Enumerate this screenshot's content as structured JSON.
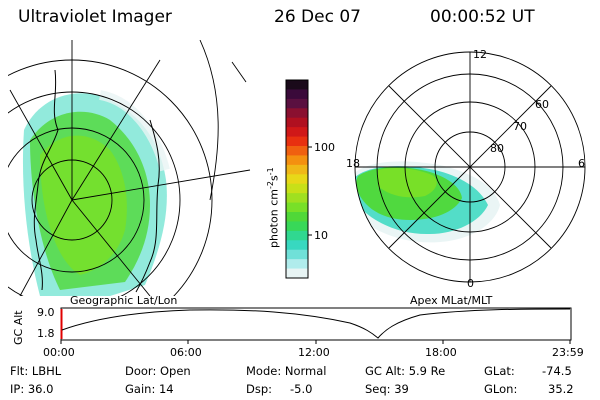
{
  "header": {
    "instrument": "Ultraviolet Imager",
    "date": "26 Dec 07",
    "time": "00:00:52 UT"
  },
  "colorbar": {
    "unit_label": "photon cm",
    "unit_exp1": "-2",
    "unit_mid": "s",
    "unit_exp2": "-1",
    "ticks": [
      "100",
      "10"
    ],
    "colors": [
      "#1a0a1a",
      "#3a0a3a",
      "#5a1040",
      "#8a1030",
      "#b01020",
      "#d01818",
      "#e83010",
      "#f06010",
      "#f49010",
      "#f0b818",
      "#e8d818",
      "#c8e018",
      "#a0e020",
      "#78e028",
      "#50d838",
      "#38d858",
      "#30d890",
      "#38d8c0",
      "#70e0d8",
      "#b0ecec",
      "#e8f4f4"
    ]
  },
  "left_map": {
    "label": "Geographic Lat/Lon"
  },
  "right_map": {
    "label": "Apex MLat/MLT",
    "mlt_labels": [
      "12",
      "18",
      "6",
      "0"
    ],
    "mlat_labels": [
      "60",
      "70",
      "80"
    ]
  },
  "altitude_plot": {
    "y_axis_label": "GC Alt",
    "y_max": "9.0",
    "y_min": "1.8",
    "x_ticks": [
      "00:00",
      "06:00",
      "12:00",
      "18:00",
      "23:59"
    ]
  },
  "info": {
    "filter": "Flt: LBHL",
    "ip": "IP: 36.0",
    "door": "Door: Open",
    "gain": "Gain: 14",
    "mode": "Mode: Normal",
    "dsp_label": "Dsp:",
    "dsp_value": "-5.0",
    "gc_alt": "GC Alt: 5.9 Re",
    "seq": "Seq: 39",
    "glat_label": "GLat:",
    "glat_value": "-74.5",
    "glon_label": "GLon:",
    "glon_value": "35.2"
  }
}
